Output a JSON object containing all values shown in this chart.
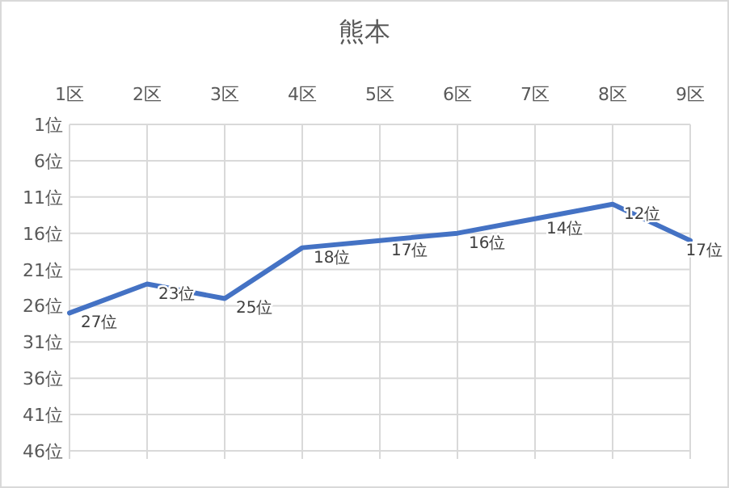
{
  "chart_data": {
    "type": "line",
    "title": "熊本",
    "categories": [
      "1区",
      "2区",
      "3区",
      "4区",
      "5区",
      "6区",
      "7区",
      "8区",
      "9区"
    ],
    "series": [
      {
        "color": "#4472c4",
        "values": [
          27,
          23,
          25,
          18,
          17,
          16,
          14,
          12,
          17
        ],
        "value_labels": [
          "27位",
          "23位",
          "25位",
          "18位",
          "17位",
          "16位",
          "14位",
          "12位",
          "17位"
        ]
      }
    ],
    "ylim": [
      46,
      1
    ],
    "yticks": [
      {
        "value": 1,
        "label": "1位"
      },
      {
        "value": 6,
        "label": "6位"
      },
      {
        "value": 11,
        "label": "11位"
      },
      {
        "value": 16,
        "label": "16位"
      },
      {
        "value": 21,
        "label": "21位"
      },
      {
        "value": 26,
        "label": "26位"
      },
      {
        "value": 31,
        "label": "31位"
      },
      {
        "value": 36,
        "label": "36位"
      },
      {
        "value": 41,
        "label": "41位"
      },
      {
        "value": 46,
        "label": "46位"
      }
    ],
    "grid": true,
    "marker": "none",
    "line_style": "solid"
  }
}
